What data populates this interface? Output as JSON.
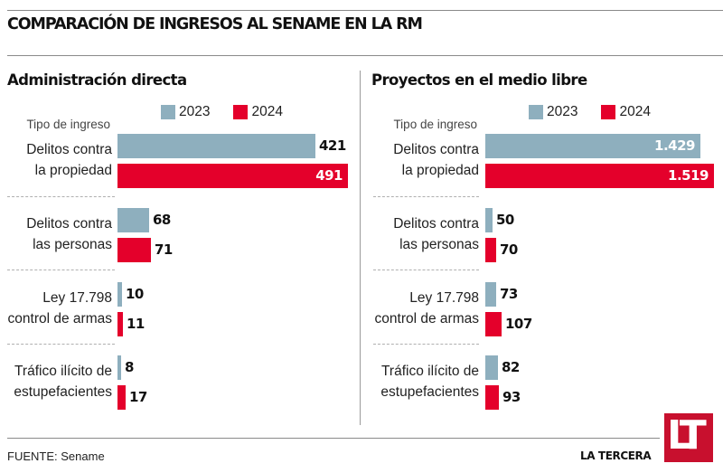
{
  "header": {
    "title": "COMPARACIÓN DE INGRESOS AL SENAME EN LA RM"
  },
  "footer": {
    "source_label": "FUENTE:",
    "source_value": "Sename",
    "brand": "LA TERCERA",
    "logo_text": "LT"
  },
  "colors": {
    "series_2023": "#8eafbe",
    "series_2024": "#e4002b",
    "logo": "#c8102e"
  },
  "chart_data": [
    {
      "type": "bar",
      "orientation": "horizontal",
      "title": "Administración directa",
      "category_axis_label": "Tipo de ingreso",
      "legend_position": "top",
      "categories": [
        [
          "Delitos contra",
          "la propiedad"
        ],
        [
          "Delitos contra",
          "las personas"
        ],
        [
          "Ley 17.798",
          "control de armas"
        ],
        [
          "Tráfico ilícito de",
          "estupefacientes"
        ]
      ],
      "series": [
        {
          "name": "2023",
          "color": "#8eafbe",
          "values": [
            421,
            68,
            10,
            8
          ],
          "labels": [
            "421",
            "68",
            "10",
            "8"
          ]
        },
        {
          "name": "2024",
          "color": "#e4002b",
          "values": [
            491,
            71,
            11,
            17
          ],
          "labels": [
            "491",
            "71",
            "11",
            "17"
          ]
        }
      ],
      "xlim": [
        0,
        491
      ],
      "grid": false
    },
    {
      "type": "bar",
      "orientation": "horizontal",
      "title": "Proyectos en el medio libre",
      "category_axis_label": "Tipo de ingreso",
      "legend_position": "top",
      "categories": [
        [
          "Delitos contra",
          "la propiedad"
        ],
        [
          "Delitos contra",
          "las personas"
        ],
        [
          "Ley 17.798",
          "control de armas"
        ],
        [
          "Tráfico ilícito de",
          "estupefacientes"
        ]
      ],
      "series": [
        {
          "name": "2023",
          "color": "#8eafbe",
          "values": [
            1429,
            50,
            73,
            82
          ],
          "labels": [
            "1.429",
            "50",
            "73",
            "82"
          ]
        },
        {
          "name": "2024",
          "color": "#e4002b",
          "values": [
            1519,
            70,
            107,
            93
          ],
          "labels": [
            "1.519",
            "70",
            "107",
            "93"
          ]
        }
      ],
      "xlim": [
        0,
        1519
      ],
      "grid": false
    }
  ]
}
